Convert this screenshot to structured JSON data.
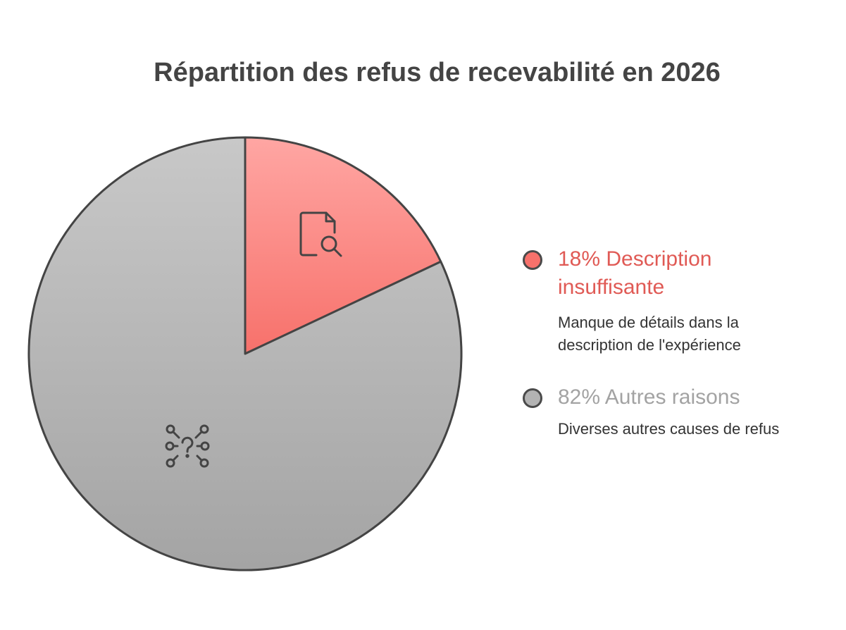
{
  "chart_data": {
    "type": "pie",
    "title": "Répartition des refus de recevabilité en 2026",
    "slices": [
      {
        "percent_label": "18%",
        "name_line1": "Description",
        "name_line2": "insuffisante",
        "value": 18,
        "description_line1": "Manque de détails dans la",
        "description_line2": "description de l'expérience",
        "color": "#f7716b",
        "color_light": "#ffa6a3",
        "label_color": "#e05a55",
        "icon": "document-search-icon"
      },
      {
        "percent_label": "82%",
        "name_line1": "Autres raisons",
        "value": 82,
        "description_line1": "Diverses autres causes de refus",
        "color": "#a4a4a4",
        "color_light": "#c8c8c8",
        "label_color": "#a3a3a3",
        "icon": "network-question-icon"
      }
    ],
    "legend_position": "right"
  }
}
